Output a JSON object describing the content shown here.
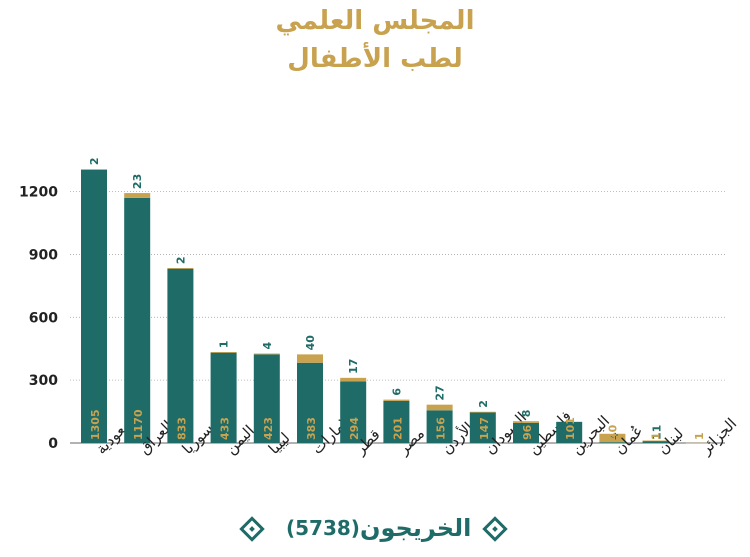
{
  "title_line1": "المجلس العلمي",
  "title_line2": "لطب الأطفال",
  "legend": {
    "label": "الخريجون",
    "total": "(5738)"
  },
  "colors": {
    "primary": "#1e6b67",
    "secondary": "#c8a24f"
  },
  "chart_data": {
    "type": "bar",
    "stacked": true,
    "categories": [
      "السعودية",
      "العراق",
      "سوريا",
      "اليمن",
      "ليبيا",
      "الإمارات",
      "قطر",
      "مصر",
      "الأردن",
      "السودان",
      "فلسطين",
      "البحرين",
      "عُمان",
      "لبنان",
      "الجزائر"
    ],
    "series": [
      {
        "values": [
          1305,
          1170,
          833,
          433,
          423,
          383,
          294,
          201,
          156,
          147,
          96,
          101,
          4,
          11,
          0
        ]
      },
      {
        "values": [
          2,
          23,
          2,
          1,
          4,
          40,
          17,
          6,
          27,
          2,
          8,
          0,
          40,
          1,
          1
        ]
      }
    ],
    "ylim": [
      0,
      1350
    ],
    "yticks": [
      0,
      300,
      600,
      900,
      1200
    ],
    "grid": true
  }
}
